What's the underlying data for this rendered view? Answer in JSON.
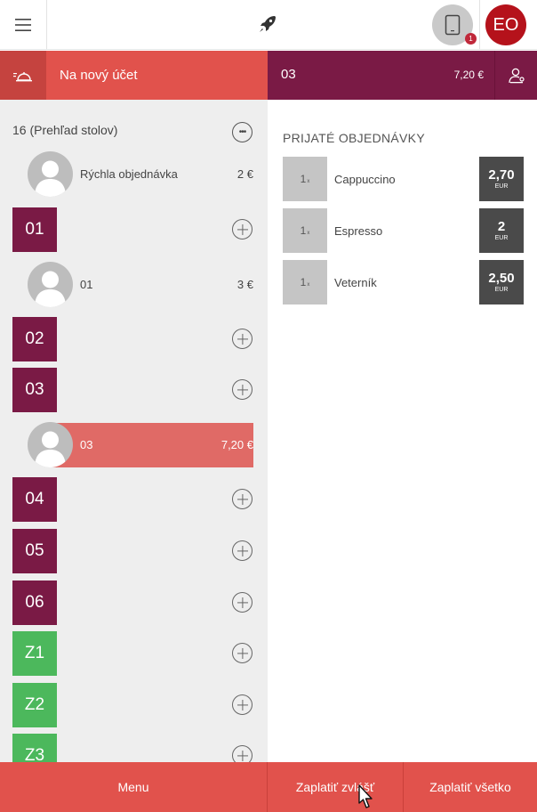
{
  "topbar": {
    "avatar_initials": "EO",
    "tablet_badge": "1",
    "icons": [
      "menu-icon",
      "rocket-icon",
      "tablet-icon"
    ]
  },
  "account_bar": {
    "new_account_label": "Na nový účet",
    "current_table": "03",
    "current_total": "7,20 €"
  },
  "left_panel": {
    "title": "16 (Prehľad stolov)",
    "more_label": "•••",
    "guests": [
      {
        "name": "Rýchla objednávka",
        "price": "2 €"
      },
      {
        "name": "01",
        "price": "3 €"
      },
      {
        "name": "03",
        "price": "7,20 €"
      }
    ],
    "tables": [
      {
        "label": "01",
        "color": "#7a1a45"
      },
      {
        "label": "02",
        "color": "#7a1a45"
      },
      {
        "label": "03",
        "color": "#7a1a45"
      },
      {
        "label": "04",
        "color": "#7a1a45"
      },
      {
        "label": "05",
        "color": "#7a1a45"
      },
      {
        "label": "06",
        "color": "#7a1a45"
      },
      {
        "label": "Z1",
        "color": "#4cb85c"
      },
      {
        "label": "Z2",
        "color": "#4cb85c"
      },
      {
        "label": "Z3",
        "color": "#4cb85c"
      }
    ]
  },
  "orders": {
    "title": "PRIJATÉ OBJEDNÁVKY",
    "currency": "EUR",
    "items": [
      {
        "qty": "1",
        "qty_unit": "x",
        "name": "Cappuccino",
        "price": "2,70"
      },
      {
        "qty": "1",
        "qty_unit": "x",
        "name": "Espresso",
        "price": "2"
      },
      {
        "qty": "1",
        "qty_unit": "x",
        "name": "Veterník",
        "price": "2,50"
      }
    ]
  },
  "bottom_bar": {
    "menu_label": "Menu",
    "pay_separately_label": "Zaplatiť zvlášť",
    "pay_all_label": "Zaplatiť všetko"
  },
  "colors": {
    "accent_red": "#e1524c",
    "table_purple": "#7a1a45",
    "table_green": "#4cb85c",
    "avatar_red": "#b5121b"
  }
}
